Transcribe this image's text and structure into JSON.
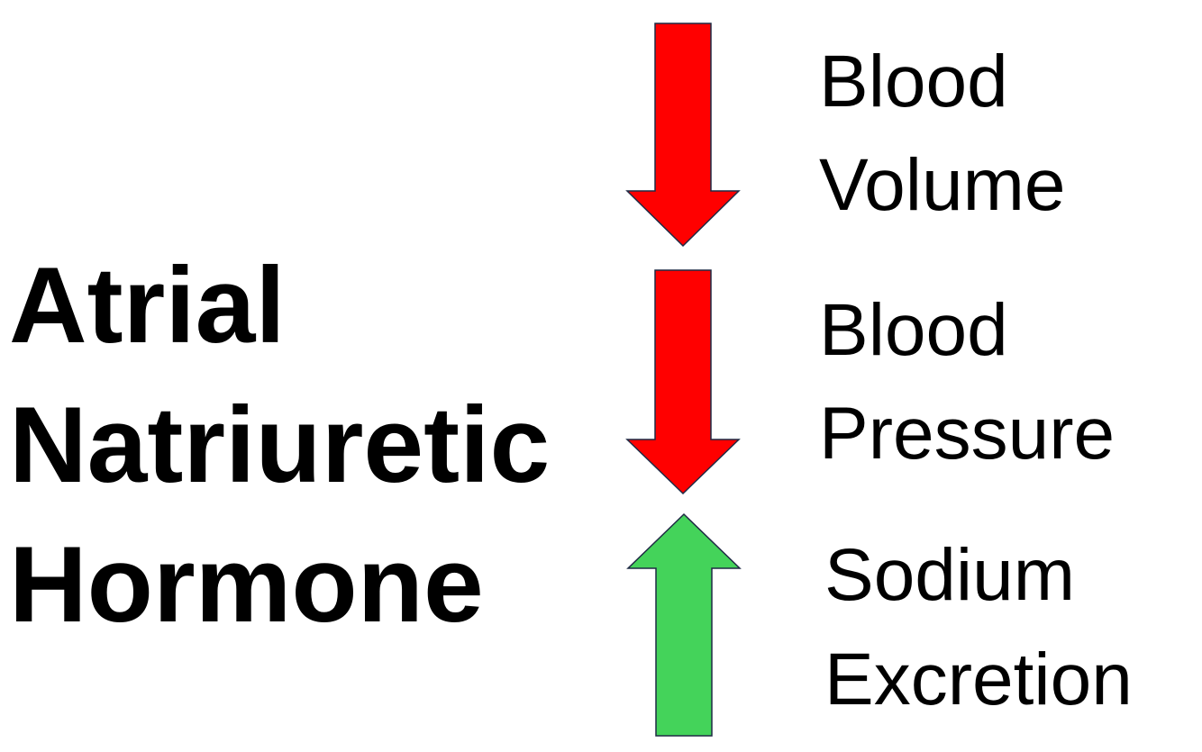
{
  "hormone": {
    "lines": [
      "Atrial",
      "Natriuretic",
      "Hormone"
    ]
  },
  "effects": [
    {
      "label_lines": [
        "Blood",
        "Volume"
      ],
      "direction": "down",
      "arrow_icon": "down-arrow-icon",
      "color": "#ff0000"
    },
    {
      "label_lines": [
        "Blood",
        "Pressure"
      ],
      "direction": "down",
      "arrow_icon": "down-arrow-icon",
      "color": "#ff0000"
    },
    {
      "label_lines": [
        "Sodium",
        "Excretion"
      ],
      "direction": "up",
      "arrow_icon": "up-arrow-icon",
      "color": "#44d35a"
    }
  ],
  "arrow_outline": "#1f2a44"
}
